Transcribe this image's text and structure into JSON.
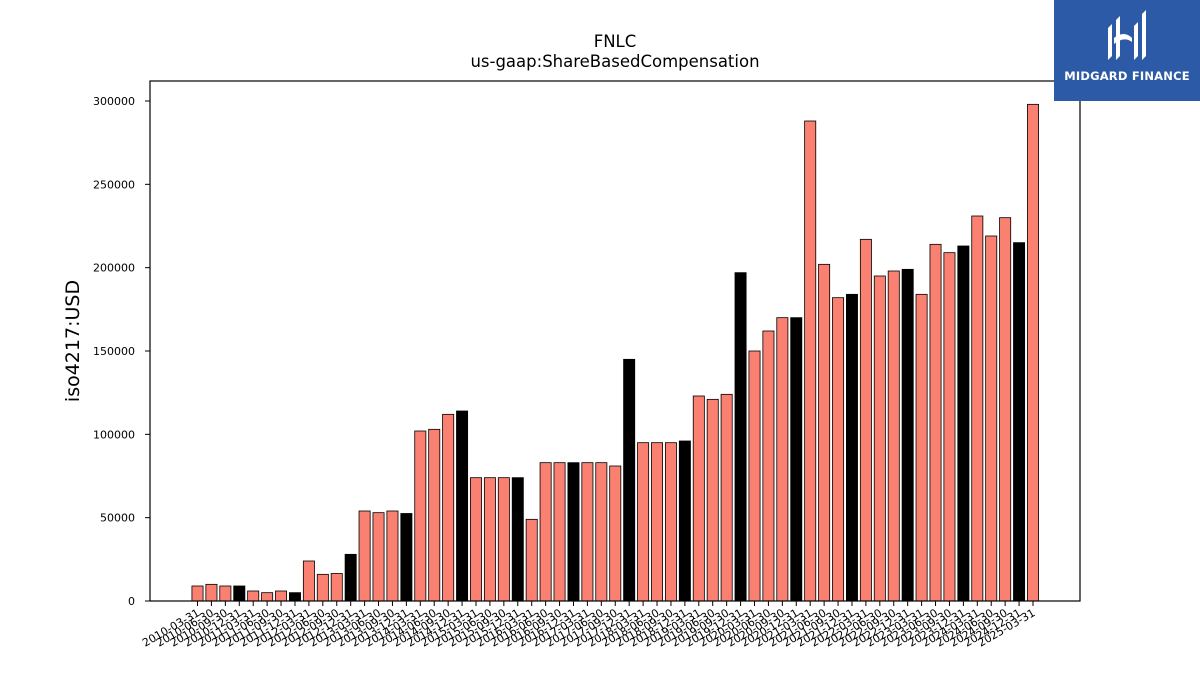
{
  "logo": {
    "text": "MIDGARD FINANCE"
  },
  "chart_data": {
    "type": "bar",
    "title": "FNLC",
    "subtitle": "us-gaap:ShareBasedCompensation",
    "xlabel": "",
    "ylabel": "iso4217:USD",
    "ylim": [
      0,
      312000
    ],
    "yticks": [
      0,
      50000,
      100000,
      150000,
      200000,
      250000,
      300000
    ],
    "grid": false,
    "colors": {
      "default": "#fa8072",
      "highlight": "#000000",
      "edge": "#000000"
    },
    "categories": [
      "2010-03-31",
      "2010-06-30",
      "2010-09-30",
      "2010-12-31",
      "2011-03-31",
      "2011-06-30",
      "2011-09-30",
      "2011-12-31",
      "2012-03-31",
      "2012-06-30",
      "2012-09-30",
      "2012-12-31",
      "2013-03-31",
      "2013-06-30",
      "2013-09-30",
      "2013-12-31",
      "2014-03-31",
      "2014-06-30",
      "2014-09-30",
      "2014-12-31",
      "2015-03-31",
      "2015-06-30",
      "2015-09-30",
      "2015-12-31",
      "2016-03-31",
      "2016-06-30",
      "2016-09-30",
      "2016-12-31",
      "2017-03-31",
      "2017-06-30",
      "2017-09-30",
      "2017-12-31",
      "2018-03-31",
      "2018-06-30",
      "2018-09-30",
      "2018-12-31",
      "2019-03-31",
      "2019-06-30",
      "2019-09-30",
      "2019-12-31",
      "2020-03-31",
      "2020-06-30",
      "2020-09-30",
      "2020-12-31",
      "2021-03-31",
      "2021-06-30",
      "2021-09-30",
      "2021-12-31",
      "2022-03-31",
      "2022-06-30",
      "2022-09-30",
      "2022-12-31",
      "2023-03-31",
      "2023-06-30",
      "2023-09-30",
      "2023-12-31",
      "2024-03-31",
      "2024-06-30",
      "2024-09-30",
      "2024-12-31",
      "2025-03-31"
    ],
    "visible_tick_labels": [
      "2010-03-31",
      "2010-06-30",
      "2010-09-30",
      "2010-12-31",
      "2011-03-31",
      "2011-06-30",
      "2011-09-30",
      "2011-12-31",
      "2012-03-31",
      "2012-06-30",
      "2012-09-30",
      "2012-12-31",
      "2013-03-31",
      "2013-06-30",
      "2013-09-30",
      "2013-12-31",
      "2014-03-31",
      "2014-06-30",
      "2014-09-30",
      "2014-12-31",
      "2015-03-31",
      "2015-06-30",
      "2015-09-30",
      "2015-12-31",
      "2016-03-31",
      "2016-06-30",
      "2016-09-30",
      "2016-12-31",
      "2017-03-31",
      "2017-06-30",
      "2017-09-30",
      "2017-12-31",
      "2018-03-31",
      "2018-06-30",
      "2018-09-30",
      "2018-12-31",
      "2019-03-31",
      "2019-06-30",
      "2019-09-30",
      "2019-12-31",
      "2020-03-31",
      "2020-06-30",
      "2020-09-30",
      "2020-12-31",
      "2021-03-31",
      "2021-06-30",
      "2021-09-30",
      "2021-12-31",
      "2022-03-31",
      "2022-06-30",
      "2022-09-30",
      "2022-12-31",
      "2023-03-31",
      "2023-06-30",
      "2023-09-30",
      "2023-12-31",
      "2024-03-31",
      "2024-06-30",
      "2024-09-30",
      "2024-12-31",
      "2025-03-31"
    ],
    "values": [
      9000,
      10000,
      9000,
      9000,
      6000,
      5000,
      6000,
      5000,
      24000,
      16000,
      16500,
      28000,
      54000,
      53000,
      54000,
      52500,
      102000,
      103000,
      112000,
      114000,
      74000,
      74000,
      74000,
      74000,
      49000,
      83000,
      83000,
      83000,
      83000,
      83000,
      81000,
      145000,
      95000,
      95000,
      95000,
      96000,
      123000,
      121000,
      124000,
      197000,
      150000,
      162000,
      170000,
      170000,
      288000,
      202000,
      182000,
      184000,
      217000,
      195000,
      198000,
      199000,
      184000,
      214000,
      209000,
      213000,
      231000,
      219000,
      230000,
      215000,
      298000
    ],
    "highlight": [
      false,
      false,
      false,
      true,
      false,
      false,
      false,
      true,
      false,
      false,
      false,
      true,
      false,
      false,
      false,
      true,
      false,
      false,
      false,
      true,
      false,
      false,
      false,
      true,
      false,
      false,
      false,
      true,
      false,
      false,
      false,
      true,
      false,
      false,
      false,
      true,
      false,
      false,
      false,
      true,
      false,
      false,
      false,
      true,
      false,
      false,
      false,
      true,
      false,
      false,
      false,
      true,
      false,
      false,
      false,
      true,
      false,
      false,
      false,
      true,
      false
    ]
  }
}
